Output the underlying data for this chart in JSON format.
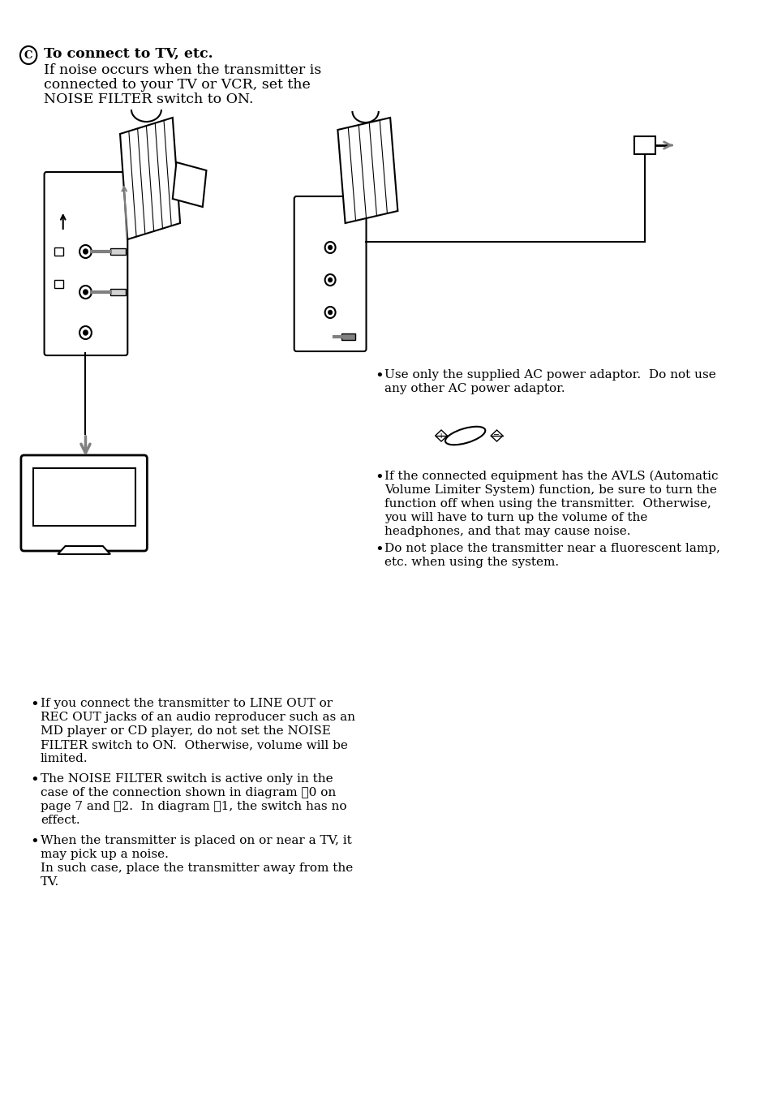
{
  "bg_color": "#ffffff",
  "title_circle_label": "C",
  "heading_line1": "To connect to TV, etc.",
  "heading_line2": "If noise occurs when the transmitter is",
  "heading_line3": "connected to your TV or VCR, set the",
  "heading_line4": "NOISE FILTER switch to ON.",
  "bullet1_lines": [
    "If you connect the transmitter to LINE OUT or",
    "REC OUT jacks of an audio reproducer such as an",
    "MD player or CD player, do not set the NOISE",
    "FILTER switch to ON.  Otherwise, volume will be",
    "limited."
  ],
  "bullet2_lines": [
    "The NOISE FILTER switch is active only in the",
    "case of the connection shown in diagram ⑁0 on",
    "page 7 and ⑂2.  In diagram ⑂1, the switch has no",
    "effect."
  ],
  "bullet3_lines": [
    "When the transmitter is placed on or near a TV, it",
    "may pick up a noise.",
    "In such case, place the transmitter away from the",
    "TV."
  ],
  "right_bullet1_lines": [
    "Use only the supplied AC power adaptor.  Do not use",
    "any other AC power adaptor."
  ],
  "right_bullet2_lines": [
    "If the connected equipment has the AVLS (Automatic",
    "Volume Limiter System) function, be sure to turn the",
    "function off when using the transmitter.  Otherwise,",
    "you will have to turn up the volume of the",
    "headphones, and that may cause noise."
  ],
  "right_bullet3_lines": [
    "Do not place the transmitter near a fluorescent lamp,",
    "etc. when using the system."
  ]
}
